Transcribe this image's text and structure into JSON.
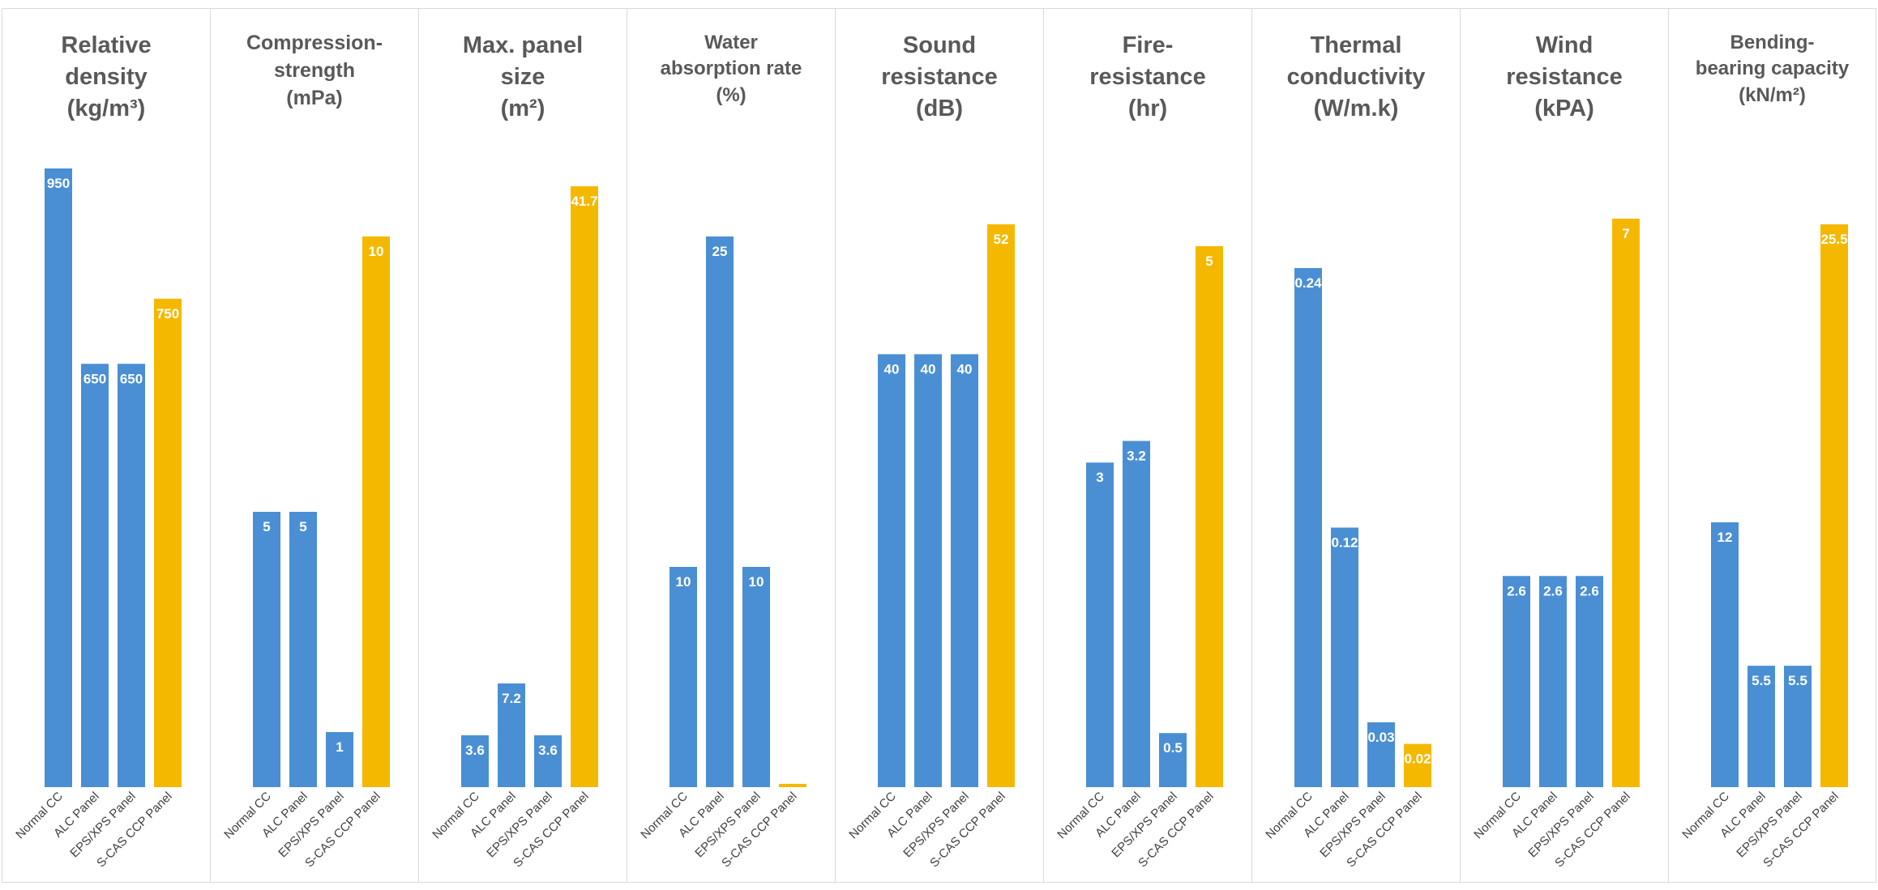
{
  "chart_data": [
    {
      "type": "bar",
      "title": "Relative\ndensity\n(kg/m³)",
      "categories": [
        "Normal CC",
        "ALC Panel",
        "EPS/XPS Panel",
        "S-CAS CCP Panel"
      ],
      "values": [
        950,
        650,
        650,
        750
      ],
      "colors": [
        "#4a8fd4",
        "#4a8fd4",
        "#4a8fd4",
        "#f5b800"
      ]
    },
    {
      "type": "bar",
      "title": "Compression-\nstrength\n(mPa)",
      "categories": [
        "Normal CC",
        "ALC Panel",
        "EPS/XPS Panel",
        "S-CAS CCP Panel"
      ],
      "values": [
        5,
        5,
        1,
        10
      ],
      "colors": [
        "#4a8fd4",
        "#4a8fd4",
        "#4a8fd4",
        "#f5b800"
      ]
    },
    {
      "type": "bar",
      "title": "Max. panel\nsize\n(m²)",
      "categories": [
        "Normal CC",
        "ALC Panel",
        "EPS/XPS Panel",
        "S-CAS CCP Panel"
      ],
      "values": [
        3.6,
        7.2,
        3.6,
        41.7
      ],
      "colors": [
        "#4a8fd4",
        "#4a8fd4",
        "#4a8fd4",
        "#f5b800"
      ]
    },
    {
      "type": "bar",
      "title": "Water\nabsorption rate\n(%)",
      "categories": [
        "Normal CC",
        "ALC Panel",
        "EPS/XPS Panel",
        "S-CAS CCP Panel"
      ],
      "values": [
        10,
        25,
        10,
        0.15
      ],
      "colors": [
        "#4a8fd4",
        "#4a8fd4",
        "#4a8fd4",
        "#f5b800"
      ]
    },
    {
      "type": "bar",
      "title": "Sound\nresistance\n(dB)",
      "categories": [
        "Normal CC",
        "ALC Panel",
        "EPS/XPS Panel",
        "S-CAS CCP Panel"
      ],
      "values": [
        40,
        40,
        40,
        52
      ],
      "colors": [
        "#4a8fd4",
        "#4a8fd4",
        "#4a8fd4",
        "#f5b800"
      ]
    },
    {
      "type": "bar",
      "title": "Fire-\nresistance\n(hr)",
      "categories": [
        "Normal CC",
        "ALC Panel",
        "EPS/XPS Panel",
        "S-CAS CCP Panel"
      ],
      "values": [
        3,
        3.2,
        0.5,
        5
      ],
      "colors": [
        "#4a8fd4",
        "#4a8fd4",
        "#4a8fd4",
        "#f5b800"
      ]
    },
    {
      "type": "bar",
      "title": "Thermal\nconductivity\n(W/m.k)",
      "categories": [
        "Normal CC",
        "ALC Panel",
        "EPS/XPS Panel",
        "S-CAS CCP Panel"
      ],
      "values": [
        0.24,
        0.12,
        0.03,
        0.02
      ],
      "colors": [
        "#4a8fd4",
        "#4a8fd4",
        "#4a8fd4",
        "#f5b800"
      ]
    },
    {
      "type": "bar",
      "title": "Wind\nresistance\n(kPA)",
      "categories": [
        "Normal CC",
        "ALC Panel",
        "EPS/XPS Panel",
        "S-CAS CCP Panel"
      ],
      "values": [
        2.6,
        2.6,
        2.6,
        7
      ],
      "colors": [
        "#4a8fd4",
        "#4a8fd4",
        "#4a8fd4",
        "#f5b800"
      ]
    },
    {
      "type": "bar",
      "title": "Bending-\nbearing capacity\n(kN/m²)",
      "categories": [
        "Normal CC",
        "ALC Panel",
        "EPS/XPS Panel",
        "S-CAS CCP Panel"
      ],
      "values": [
        12,
        5.5,
        5.5,
        25.5
      ],
      "colors": [
        "#4a8fd4",
        "#4a8fd4",
        "#4a8fd4",
        "#f5b800"
      ]
    }
  ]
}
